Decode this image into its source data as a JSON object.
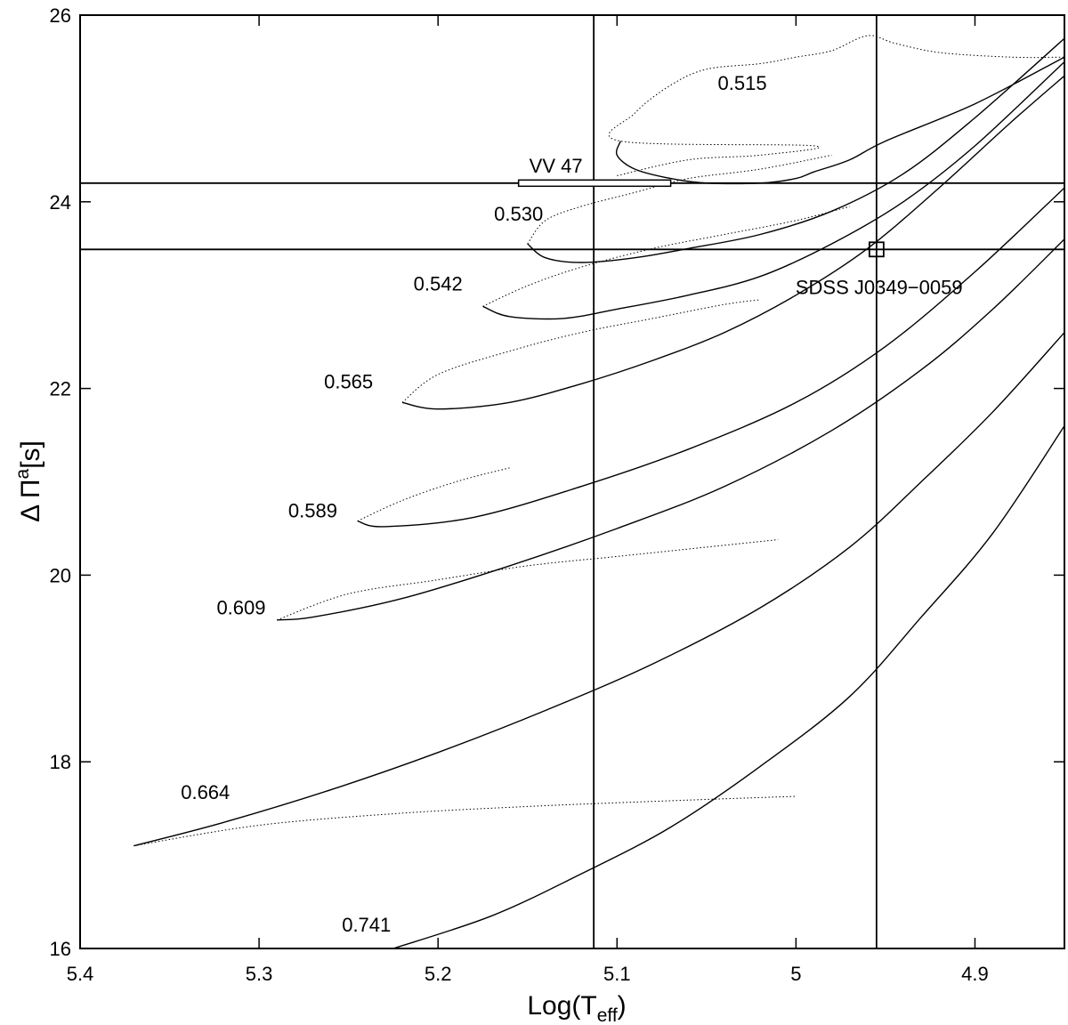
{
  "chart_data": {
    "type": "line",
    "xlabel": "Log(T",
    "xlabel_sub": "eff",
    "xlabel_close": ")",
    "ylabel": "Δ Π",
    "ylabel_sup": "a",
    "ylabel_unit": "[s]",
    "xlim": [
      5.4,
      4.85
    ],
    "ylim": [
      16,
      26
    ],
    "x_ticks": [
      5.4,
      5.3,
      5.2,
      5.1,
      5.0,
      4.9
    ],
    "x_tick_labels": [
      "5.4",
      "5.3",
      "5.2",
      "5.1",
      "5",
      "4.9"
    ],
    "y_ticks": [
      16,
      18,
      20,
      22,
      24,
      26
    ],
    "y_tick_labels": [
      "16",
      "18",
      "20",
      "22",
      "24",
      "26"
    ],
    "grid": false,
    "series": [
      {
        "name": "0.515",
        "label": "0.515",
        "label_at": [
          5.03,
          25.2
        ],
        "solid": [
          [
            5.098,
            24.65
          ],
          [
            5.1,
            24.5
          ],
          [
            5.09,
            24.35
          ],
          [
            5.07,
            24.25
          ],
          [
            5.05,
            24.2
          ],
          [
            5.02,
            24.2
          ],
          [
            5.0,
            24.25
          ],
          [
            4.99,
            24.32
          ],
          [
            4.97,
            24.45
          ],
          [
            4.95,
            24.65
          ],
          [
            4.9,
            25.05
          ],
          [
            4.85,
            25.55
          ]
        ],
        "dotted": [
          [
            5.1,
            24.28
          ],
          [
            5.06,
            24.45
          ],
          [
            5.02,
            24.5
          ],
          [
            4.99,
            24.6
          ],
          [
            5.098,
            24.65
          ],
          [
            5.09,
            24.95
          ],
          [
            5.07,
            25.25
          ],
          [
            5.05,
            25.42
          ],
          [
            5.02,
            25.48
          ],
          [
            5.0,
            25.55
          ],
          [
            4.98,
            25.62
          ],
          [
            4.96,
            25.78
          ],
          [
            4.945,
            25.7
          ],
          [
            4.92,
            25.6
          ],
          [
            4.88,
            25.55
          ],
          [
            4.85,
            25.55
          ]
        ]
      },
      {
        "name": "0.530",
        "label": "0.530",
        "label_at": [
          5.155,
          23.8
        ],
        "solid": [
          [
            5.15,
            23.55
          ],
          [
            5.14,
            23.4
          ],
          [
            5.12,
            23.35
          ],
          [
            5.09,
            23.4
          ],
          [
            5.06,
            23.5
          ],
          [
            5.02,
            23.65
          ],
          [
            4.98,
            23.9
          ],
          [
            4.94,
            24.3
          ],
          [
            4.9,
            24.9
          ],
          [
            4.85,
            25.75
          ]
        ],
        "dotted": [
          [
            5.15,
            23.55
          ],
          [
            5.14,
            23.8
          ],
          [
            5.12,
            23.95
          ],
          [
            5.09,
            24.1
          ],
          [
            5.06,
            24.25
          ],
          [
            5.02,
            24.35
          ],
          [
            4.98,
            24.5
          ]
        ]
      },
      {
        "name": "0.542",
        "label": "0.542",
        "label_at": [
          5.2,
          23.05
        ],
        "solid": [
          [
            5.175,
            22.88
          ],
          [
            5.16,
            22.77
          ],
          [
            5.13,
            22.75
          ],
          [
            5.1,
            22.85
          ],
          [
            5.06,
            23.0
          ],
          [
            5.02,
            23.2
          ],
          [
            4.98,
            23.55
          ],
          [
            4.94,
            24.0
          ],
          [
            4.9,
            24.6
          ],
          [
            4.85,
            25.5
          ]
        ],
        "dotted": [
          [
            5.175,
            22.88
          ],
          [
            5.15,
            23.1
          ],
          [
            5.12,
            23.3
          ],
          [
            5.08,
            23.5
          ],
          [
            5.04,
            23.65
          ],
          [
            5.0,
            23.8
          ],
          [
            4.97,
            23.95
          ]
        ]
      },
      {
        "name": "0.565",
        "label": "0.565",
        "label_at": [
          5.25,
          22.0
        ],
        "solid": [
          [
            5.22,
            21.85
          ],
          [
            5.2,
            21.78
          ],
          [
            5.16,
            21.85
          ],
          [
            5.12,
            22.05
          ],
          [
            5.08,
            22.3
          ],
          [
            5.04,
            22.6
          ],
          [
            5.0,
            23.0
          ],
          [
            4.96,
            23.5
          ],
          [
            4.92,
            24.15
          ],
          [
            4.88,
            24.85
          ],
          [
            4.85,
            25.35
          ]
        ],
        "dotted": [
          [
            5.22,
            21.85
          ],
          [
            5.2,
            22.15
          ],
          [
            5.16,
            22.4
          ],
          [
            5.12,
            22.6
          ],
          [
            5.08,
            22.75
          ],
          [
            5.04,
            22.9
          ],
          [
            5.02,
            22.95
          ]
        ]
      },
      {
        "name": "0.589",
        "label": "0.589",
        "label_at": [
          5.27,
          20.62
        ],
        "solid": [
          [
            5.245,
            20.58
          ],
          [
            5.23,
            20.52
          ],
          [
            5.18,
            20.62
          ],
          [
            5.12,
            20.95
          ],
          [
            5.06,
            21.35
          ],
          [
            5.0,
            21.85
          ],
          [
            4.95,
            22.45
          ],
          [
            4.9,
            23.25
          ],
          [
            4.85,
            24.15
          ]
        ],
        "dotted": [
          [
            5.245,
            20.58
          ],
          [
            5.22,
            20.8
          ],
          [
            5.19,
            21.0
          ],
          [
            5.16,
            21.15
          ]
        ]
      },
      {
        "name": "0.609",
        "label": "0.609",
        "label_at": [
          5.31,
          19.58
        ],
        "solid": [
          [
            5.29,
            19.52
          ],
          [
            5.27,
            19.55
          ],
          [
            5.22,
            19.75
          ],
          [
            5.16,
            20.1
          ],
          [
            5.1,
            20.5
          ],
          [
            5.04,
            20.95
          ],
          [
            4.98,
            21.55
          ],
          [
            4.93,
            22.2
          ],
          [
            4.89,
            22.85
          ],
          [
            4.85,
            23.6
          ]
        ],
        "dotted": [
          [
            5.29,
            19.52
          ],
          [
            5.25,
            19.8
          ],
          [
            5.2,
            19.95
          ],
          [
            5.15,
            20.1
          ],
          [
            5.1,
            20.2
          ],
          [
            5.05,
            20.3
          ],
          [
            5.01,
            20.38
          ]
        ]
      },
      {
        "name": "0.664",
        "label": "0.664",
        "label_at": [
          5.33,
          17.6
        ],
        "solid": [
          [
            5.37,
            17.1
          ],
          [
            5.32,
            17.35
          ],
          [
            5.26,
            17.7
          ],
          [
            5.2,
            18.1
          ],
          [
            5.14,
            18.55
          ],
          [
            5.08,
            19.05
          ],
          [
            5.02,
            19.65
          ],
          [
            4.97,
            20.3
          ],
          [
            4.93,
            21.0
          ],
          [
            4.89,
            21.75
          ],
          [
            4.85,
            22.6
          ]
        ],
        "dotted": [
          [
            5.37,
            17.1
          ],
          [
            5.3,
            17.32
          ],
          [
            5.22,
            17.45
          ],
          [
            5.14,
            17.53
          ],
          [
            5.06,
            17.59
          ],
          [
            5.0,
            17.63
          ]
        ]
      },
      {
        "name": "0.741",
        "label": "0.741",
        "label_at": [
          5.24,
          16.18
        ],
        "solid": [
          [
            5.225,
            16.0
          ],
          [
            5.17,
            16.35
          ],
          [
            5.12,
            16.8
          ],
          [
            5.07,
            17.3
          ],
          [
            5.02,
            17.95
          ],
          [
            4.97,
            18.7
          ],
          [
            4.93,
            19.55
          ],
          [
            4.89,
            20.45
          ],
          [
            4.85,
            21.6
          ]
        ],
        "dotted": []
      }
    ],
    "vertical_lines": [
      5.113,
      4.955
    ],
    "horizontal_lines": [
      24.2,
      23.49
    ],
    "annotations": [
      {
        "text": "VV 47",
        "x": 5.113,
        "y": 24.2,
        "xerr_low": 5.155,
        "xerr_high": 5.07,
        "marker": "errorbar"
      },
      {
        "text": "SDSS J0349−0059",
        "x": 4.955,
        "y": 23.49,
        "marker": "square"
      }
    ]
  }
}
